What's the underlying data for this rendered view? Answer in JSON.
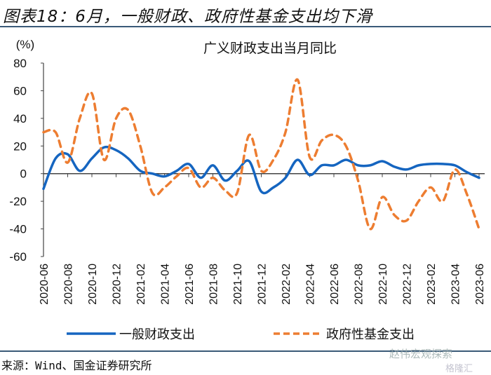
{
  "figure_title": "图表18：6月，一般财政、政府性基金支出均下滑",
  "source": "来源：Wind、国金证券研究所",
  "watermarks": [
    "赵伟宏观探索",
    "格隆汇"
  ],
  "chart_data": {
    "type": "line",
    "title": "广义财政支出当月同比",
    "ylabel": "(%)",
    "ylim": [
      -60,
      80
    ],
    "yticks": [
      80,
      60,
      40,
      20,
      0,
      -20,
      -40,
      -60
    ],
    "x": [
      "2020-06",
      "2020-07",
      "2020-08",
      "2020-09",
      "2020-10",
      "2020-11",
      "2020-12",
      "2021-01",
      "2021-02",
      "2021-03",
      "2021-04",
      "2021-05",
      "2021-06",
      "2021-07",
      "2021-08",
      "2021-09",
      "2021-10",
      "2021-11",
      "2021-12",
      "2022-01",
      "2022-02",
      "2022-03",
      "2022-04",
      "2022-05",
      "2022-06",
      "2022-07",
      "2022-08",
      "2022-09",
      "2022-10",
      "2022-11",
      "2022-12",
      "2023-01",
      "2023-02",
      "2023-03",
      "2023-04",
      "2023-05",
      "2023-06"
    ],
    "xtick_labels": [
      "2020-06",
      "2020-08",
      "2020-10",
      "2020-12",
      "2021-02",
      "2021-04",
      "2021-06",
      "2021-08",
      "2021-10",
      "2021-12",
      "2022-02",
      "2022-04",
      "2022-06",
      "2022-08",
      "2022-10",
      "2022-12",
      "2023-02",
      "2023-04",
      "2023-06"
    ],
    "grid": false,
    "legend": "bottom",
    "series": [
      {
        "name": "一般财政支出",
        "color": "#1565c0",
        "style": "solid",
        "values": [
          -11,
          11,
          14,
          2,
          11,
          19,
          17,
          11,
          2,
          0,
          -2,
          2,
          7,
          -3,
          6,
          -5,
          2,
          9,
          -13,
          -10,
          -3,
          10,
          -1,
          6,
          6,
          10,
          6,
          6,
          9,
          5,
          3,
          6,
          7,
          7,
          6,
          1,
          -3
        ]
      },
      {
        "name": "政府性基金支出",
        "color": "#ed7d31",
        "style": "dashed",
        "values": [
          30,
          30,
          8,
          40,
          58,
          10,
          40,
          46,
          20,
          -14,
          -10,
          -2,
          4,
          -10,
          -3,
          -12,
          -14,
          28,
          2,
          10,
          30,
          68,
          12,
          24,
          28,
          20,
          -5,
          -40,
          -17,
          -30,
          -34,
          -20,
          -10,
          -20,
          3,
          -15,
          -40
        ]
      }
    ]
  }
}
